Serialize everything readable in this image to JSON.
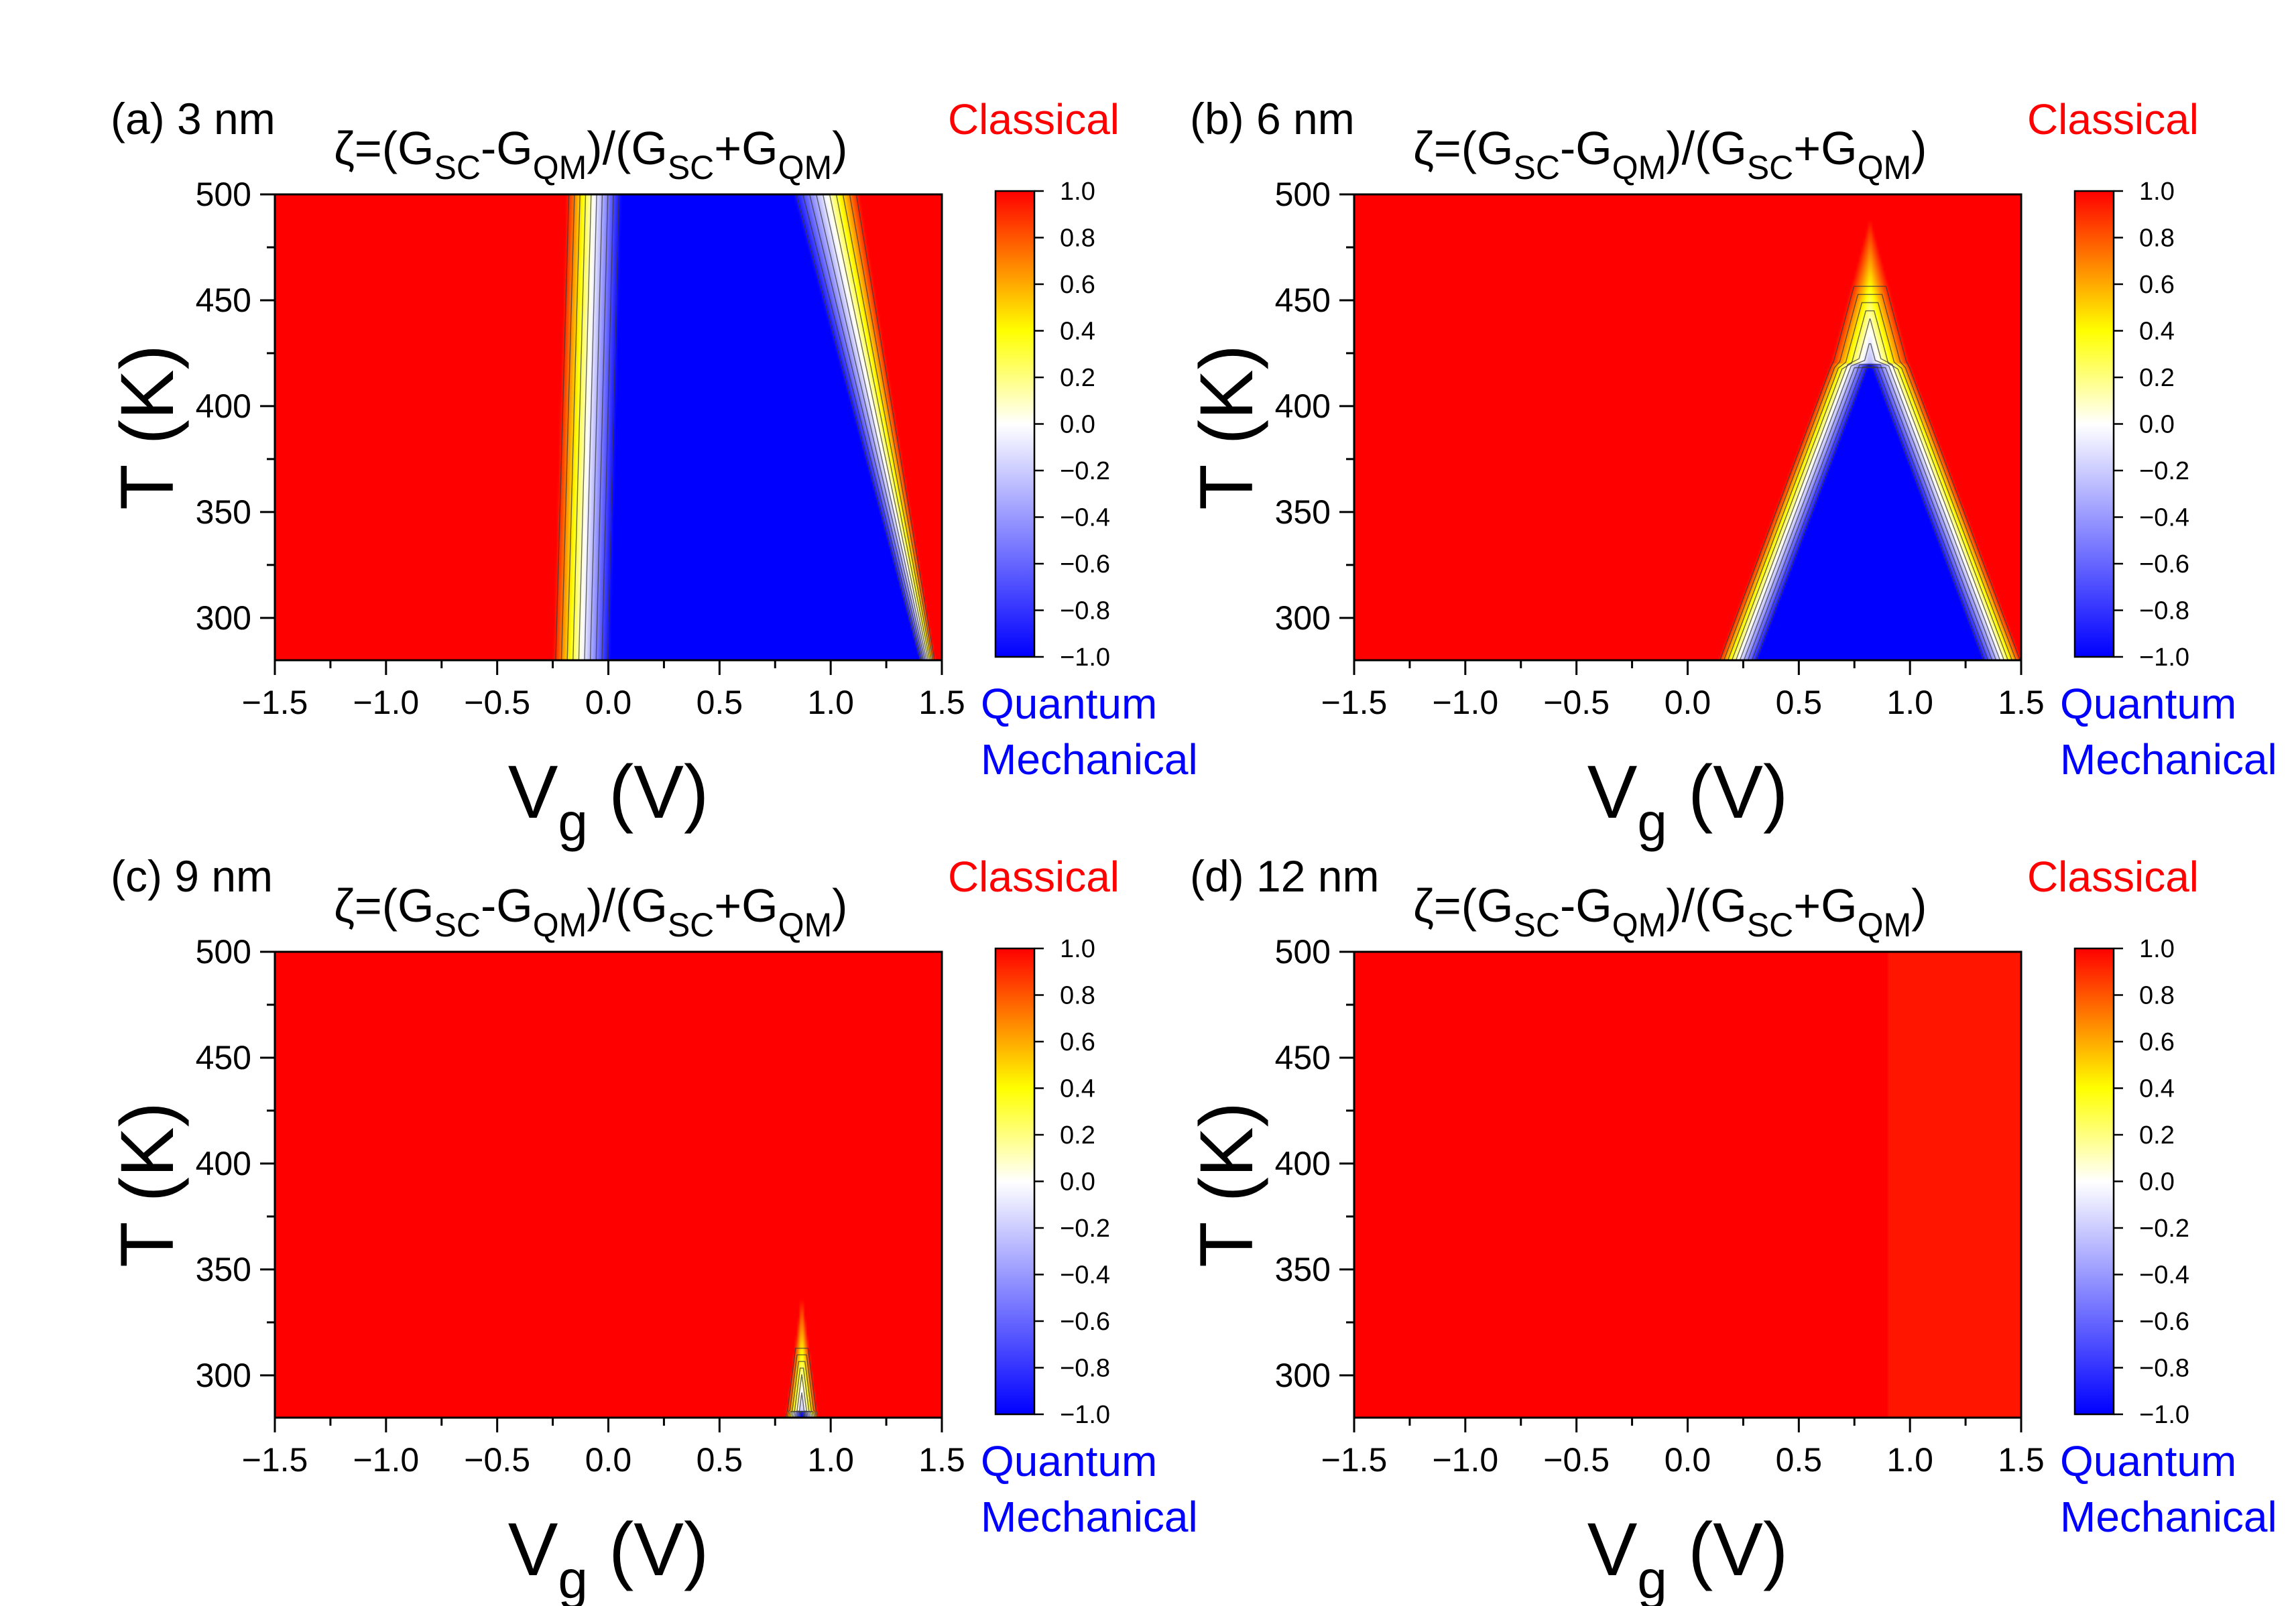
{
  "colorscale": {
    "stops": [
      {
        "v": -1.0,
        "color": "#0000ff"
      },
      {
        "v": 0.0,
        "color": "#ffffff"
      },
      {
        "v": 0.4,
        "color": "#ffff00"
      },
      {
        "v": 1.0,
        "color": "#ff0000"
      }
    ],
    "contour_color": "#3a3a3a"
  },
  "chart_data": [
    {
      "type": "heatmap",
      "panel_label": "(a) 3 nm",
      "title_parts": [
        "ζ=(G",
        "SC",
        "-G",
        "QM",
        ")/(G",
        "SC",
        "+G",
        "QM",
        ")"
      ],
      "xlabel_main": "V",
      "xlabel_sub": "g",
      "xlabel_unit": " (V)",
      "ylabel": "T (K)",
      "xlim": [
        -1.5,
        1.5
      ],
      "ylim": [
        280,
        500
      ],
      "xticks": [
        -1.5,
        -1.0,
        -0.5,
        0.0,
        0.5,
        1.0,
        1.5
      ],
      "xtick_labels": [
        "−1.5",
        "−1.0",
        "−0.5",
        "0.0",
        "0.5",
        "1.0",
        "1.5"
      ],
      "yticks": [
        300,
        350,
        400,
        450,
        500
      ],
      "ytick_labels": [
        "300",
        "350",
        "400",
        "450",
        "500"
      ],
      "colorbar_ticks": [
        1.0,
        0.8,
        0.6,
        0.4,
        0.2,
        0.0,
        -0.2,
        -0.4,
        -0.6,
        -0.8,
        -1.0
      ],
      "colorbar_labels": [
        "1.0",
        "0.8",
        "0.6",
        "0.4",
        "0.2",
        "0.0",
        "−0.2",
        "−0.4",
        "−0.6",
        "−0.8",
        "−1.0"
      ],
      "top_annotation": "Classical",
      "bottom_annotation": [
        "Quantum",
        "Mechanical"
      ],
      "field": {
        "model": "band",
        "left_edge": [
          -0.25,
          -0.19
        ],
        "left_width": [
          0.26,
          0.25
        ],
        "right_edge": [
          1.47,
          1.13
        ],
        "right_width": [
          0.07,
          0.3
        ],
        "peak_x": 0.8
      }
    },
    {
      "type": "heatmap",
      "panel_label": "(b) 6 nm",
      "title_parts": [
        "ζ=(G",
        "SC",
        "-G",
        "QM",
        ")/(G",
        "SC",
        "+G",
        "QM",
        ")"
      ],
      "xlabel_main": "V",
      "xlabel_sub": "g",
      "xlabel_unit": " (V)",
      "ylabel": "T (K)",
      "xlim": [
        -1.5,
        1.5
      ],
      "ylim": [
        280,
        500
      ],
      "xticks": [
        -1.5,
        -1.0,
        -0.5,
        0.0,
        0.5,
        1.0,
        1.5
      ],
      "xtick_labels": [
        "−1.5",
        "−1.0",
        "−0.5",
        "0.0",
        "0.5",
        "1.0",
        "1.5"
      ],
      "yticks": [
        300,
        350,
        400,
        450,
        500
      ],
      "ytick_labels": [
        "300",
        "350",
        "400",
        "450",
        "500"
      ],
      "colorbar_ticks": [
        1.0,
        0.8,
        0.6,
        0.4,
        0.2,
        0.0,
        -0.2,
        -0.4,
        -0.6,
        -0.8,
        -1.0
      ],
      "colorbar_labels": [
        "1.0",
        "0.8",
        "0.6",
        "0.4",
        "0.2",
        "0.0",
        "−0.2",
        "−0.4",
        "−0.6",
        "−0.8",
        "−1.0"
      ],
      "top_annotation": "Classical",
      "bottom_annotation": [
        "Quantum",
        "Mechanical"
      ],
      "field": {
        "model": "peak",
        "center": 0.82,
        "zero_peak_T": 420,
        "dome_top_T": 490,
        "slope": 0.0036,
        "width": 0.18
      }
    },
    {
      "type": "heatmap",
      "panel_label": "(c) 9 nm",
      "title_parts": [
        "ζ=(G",
        "SC",
        "-G",
        "QM",
        ")/(G",
        "SC",
        "+G",
        "QM",
        ")"
      ],
      "xlabel_main": "V",
      "xlabel_sub": "g",
      "xlabel_unit": " (V)",
      "ylabel": "T (K)",
      "xlim": [
        -1.5,
        1.5
      ],
      "ylim": [
        280,
        500
      ],
      "xticks": [
        -1.5,
        -1.0,
        -0.5,
        0.0,
        0.5,
        1.0,
        1.5
      ],
      "xtick_labels": [
        "−1.5",
        "−1.0",
        "−0.5",
        "0.0",
        "0.5",
        "1.0",
        "1.5"
      ],
      "yticks": [
        300,
        350,
        400,
        450,
        500
      ],
      "ytick_labels": [
        "300",
        "350",
        "400",
        "450",
        "500"
      ],
      "colorbar_ticks": [
        1.0,
        0.8,
        0.6,
        0.4,
        0.2,
        0.0,
        -0.2,
        -0.4,
        -0.6,
        -0.8,
        -1.0
      ],
      "colorbar_labels": [
        "1.0",
        "0.8",
        "0.6",
        "0.4",
        "0.2",
        "0.0",
        "−0.2",
        "−0.4",
        "−0.6",
        "−0.8",
        "−1.0"
      ],
      "top_annotation": "Classical",
      "bottom_annotation": [
        "Quantum",
        "Mechanical"
      ],
      "field": {
        "model": "peak",
        "center": 0.87,
        "zero_peak_T": 283,
        "dome_top_T": 340,
        "slope": 0.0018,
        "width": 0.07
      }
    },
    {
      "type": "heatmap",
      "panel_label": "(d) 12 nm",
      "title_parts": [
        "ζ=(G",
        "SC",
        "-G",
        "QM",
        ")/(G",
        "SC",
        "+G",
        "QM",
        ")"
      ],
      "xlabel_main": "V",
      "xlabel_sub": "g",
      "xlabel_unit": " (V)",
      "ylabel": "T (K)",
      "xlim": [
        -1.5,
        1.5
      ],
      "ylim": [
        280,
        500
      ],
      "xticks": [
        -1.5,
        -1.0,
        -0.5,
        0.0,
        0.5,
        1.0,
        1.5
      ],
      "xtick_labels": [
        "−1.5",
        "−1.0",
        "−0.5",
        "0.0",
        "0.5",
        "1.0",
        "1.5"
      ],
      "yticks": [
        300,
        350,
        400,
        450,
        500
      ],
      "ytick_labels": [
        "300",
        "350",
        "400",
        "450",
        "500"
      ],
      "colorbar_ticks": [
        1.0,
        0.8,
        0.6,
        0.4,
        0.2,
        0.0,
        -0.2,
        -0.4,
        -0.6,
        -0.8,
        -1.0
      ],
      "colorbar_labels": [
        "1.0",
        "0.8",
        "0.6",
        "0.4",
        "0.2",
        "0.0",
        "−0.2",
        "−0.4",
        "−0.6",
        "−0.8",
        "−1.0"
      ],
      "top_annotation": "Classical",
      "bottom_annotation": [
        "Quantum",
        "Mechanical"
      ],
      "field": {
        "model": "flat",
        "center": 0.9
      }
    }
  ]
}
